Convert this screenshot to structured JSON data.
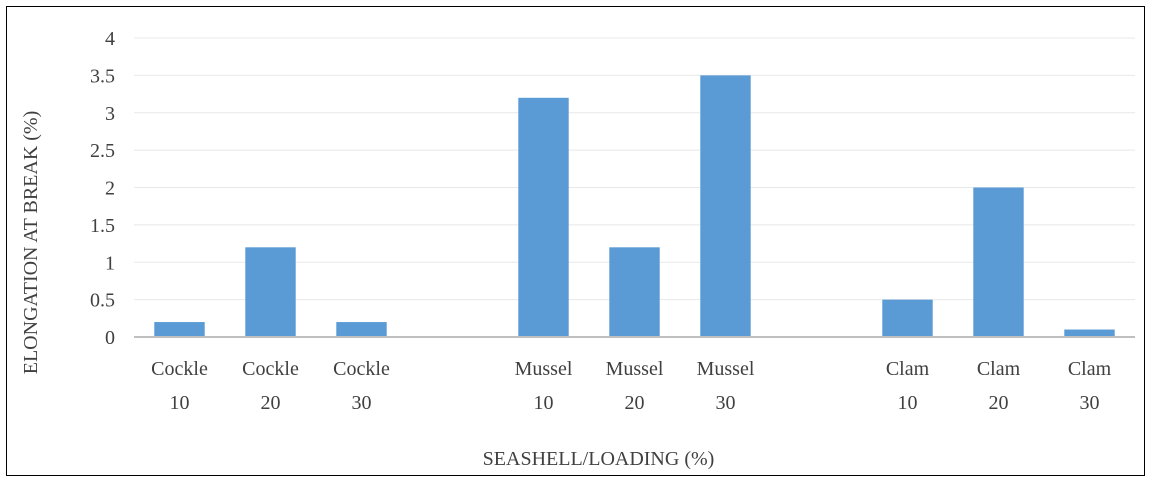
{
  "chart_data": {
    "type": "bar",
    "categories": [
      [
        "Cockle",
        "10"
      ],
      [
        "Cockle",
        "20"
      ],
      [
        "Cockle",
        "30"
      ],
      [
        "",
        ""
      ],
      [
        "Mussel",
        "10"
      ],
      [
        "Mussel",
        "20"
      ],
      [
        "Mussel",
        "30"
      ],
      [
        "",
        ""
      ],
      [
        "Clam",
        "10"
      ],
      [
        "Clam",
        "20"
      ],
      [
        "Clam",
        "30"
      ]
    ],
    "values": [
      0.2,
      1.2,
      0.2,
      null,
      3.2,
      1.2,
      3.5,
      null,
      0.5,
      2.0,
      0.1
    ],
    "xlabel": "SEASHELL/LOADING (%)",
    "ylabel": "ELONGATION AT BREAK (%)",
    "ylim": [
      0,
      4
    ],
    "yticks": [
      "0",
      "0.5",
      "1",
      "1.5",
      "2",
      "2.5",
      "3",
      "3.5",
      "4"
    ],
    "grid": true,
    "bar_color": "#5b9bd5",
    "gridline_color": "#e8e8e8",
    "axis_color": "#bfbfbf"
  }
}
